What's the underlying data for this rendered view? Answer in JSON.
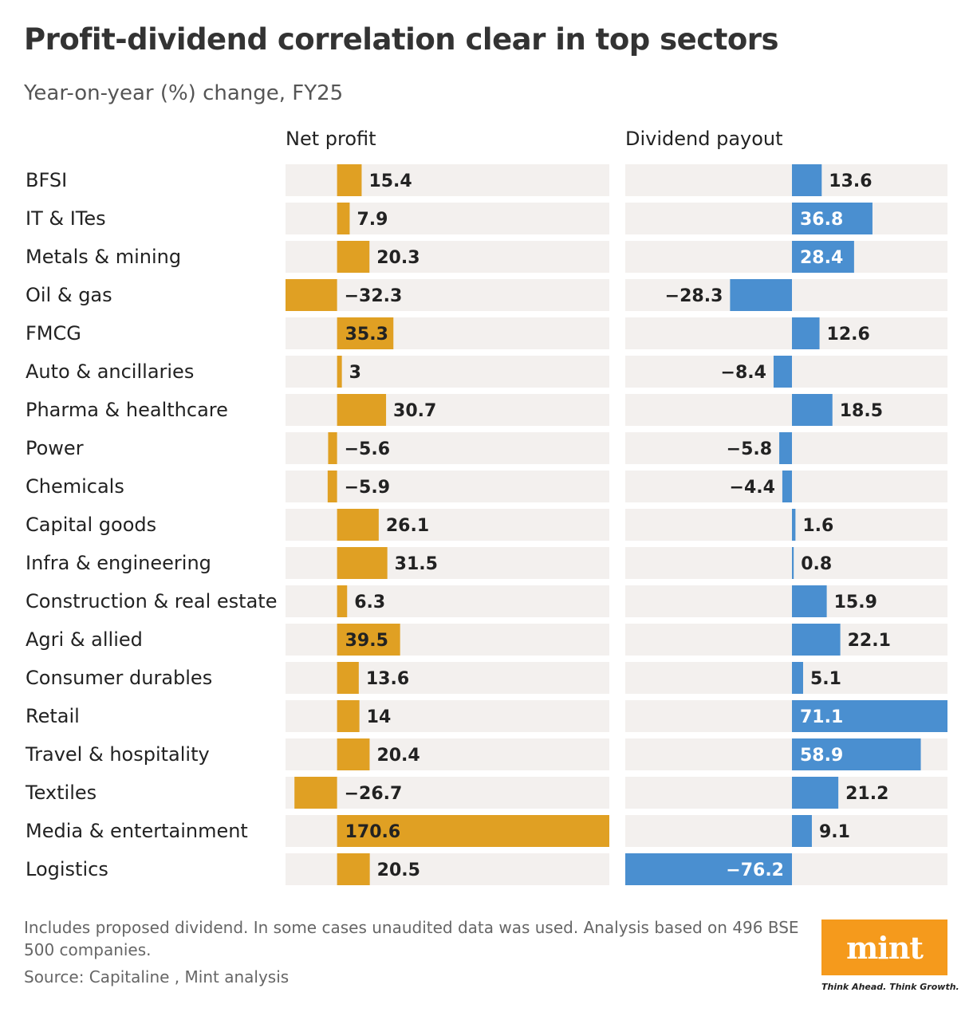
{
  "header": {
    "title": "Profit-dividend correlation clear in top sectors",
    "subtitle": "Year-on-year (%) change, FY25"
  },
  "colors": {
    "profit_bar": "#e0a023",
    "dividend_bar": "#4a8fd0",
    "track": "#f3f0ee",
    "logo": "#f59a1c"
  },
  "chart_data": {
    "type": "bar",
    "orientation": "horizontal",
    "title": "Profit-dividend correlation clear in top sectors",
    "subtitle": "Year-on-year (%) change, FY25",
    "categories": [
      "BFSI",
      "IT & ITes",
      "Metals & mining",
      "Oil & gas",
      "FMCG",
      "Auto & ancillaries",
      "Pharma & healthcare",
      "Power",
      "Chemicals",
      "Capital goods",
      "Infra & engineering",
      "Construction & real estate",
      "Agri & allied",
      "Consumer durables",
      "Retail",
      "Travel & hospitality",
      "Textiles",
      "Media & entertainment",
      "Logistics"
    ],
    "series": [
      {
        "name": "Net profit",
        "values": [
          15.4,
          7.9,
          20.3,
          -32.3,
          35.3,
          3,
          30.7,
          -5.6,
          -5.9,
          26.1,
          31.5,
          6.3,
          39.5,
          13.6,
          14,
          20.4,
          -26.7,
          170.6,
          20.5
        ],
        "labels": [
          "15.4",
          "7.9",
          "20.3",
          "−32.3",
          "35.3",
          "3",
          "30.7",
          "−5.6",
          "−5.9",
          "26.1",
          "31.5",
          "6.3",
          "39.5",
          "13.6",
          "14",
          "20.4",
          "−26.7",
          "170.6",
          "20.5"
        ],
        "inside_label": [
          false,
          false,
          false,
          false,
          true,
          false,
          false,
          false,
          false,
          false,
          false,
          false,
          true,
          false,
          false,
          false,
          false,
          true,
          false
        ],
        "xlim": [
          -32.3,
          170.6
        ]
      },
      {
        "name": "Dividend payout",
        "values": [
          13.6,
          36.8,
          28.4,
          -28.3,
          12.6,
          -8.4,
          18.5,
          -5.8,
          -4.4,
          1.6,
          0.8,
          15.9,
          22.1,
          5.1,
          71.1,
          58.9,
          21.2,
          9.1,
          -76.2
        ],
        "labels": [
          "13.6",
          "36.8",
          "28.4",
          "−28.3",
          "12.6",
          "−8.4",
          "18.5",
          "−5.8",
          "−4.4",
          "1.6",
          "0.8",
          "15.9",
          "22.1",
          "5.1",
          "71.1",
          "58.9",
          "21.2",
          "9.1",
          "−76.2"
        ],
        "inside_label": [
          false,
          true,
          true,
          false,
          false,
          false,
          false,
          false,
          false,
          false,
          false,
          false,
          false,
          false,
          true,
          true,
          false,
          false,
          true
        ],
        "xlim": [
          -76.2,
          71.1
        ]
      }
    ]
  },
  "footer": {
    "note": "Includes proposed dividend. In some cases unaudited data was used. Analysis based on 496 BSE 500 companies.",
    "source": "Source: Capitaline , Mint analysis"
  },
  "brand": {
    "logo": "mint",
    "tagline": "Think Ahead. Think Growth."
  }
}
